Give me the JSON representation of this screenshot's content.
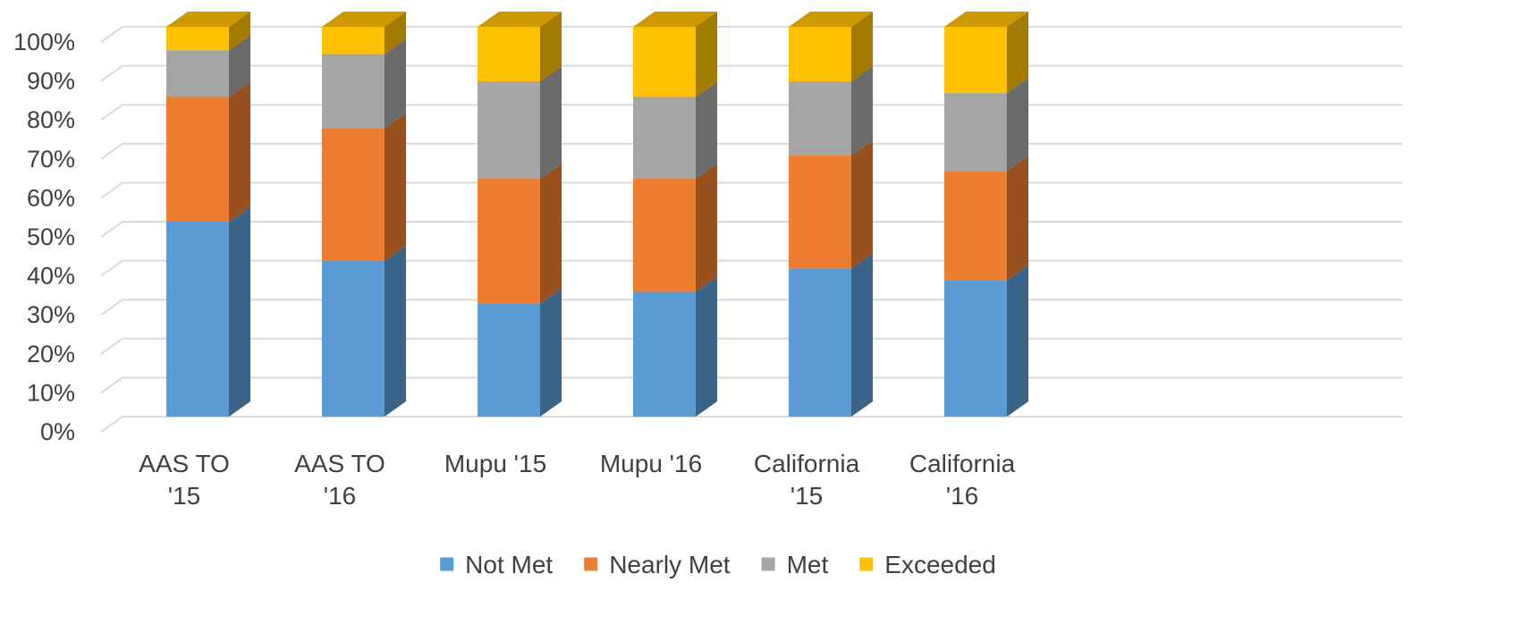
{
  "chart_data": {
    "type": "bar",
    "stacked": true,
    "percent_stacked": true,
    "three_d": true,
    "categories": [
      [
        "AAS TO",
        "'15"
      ],
      [
        "AAS TO",
        "'16"
      ],
      [
        "Mupu '15"
      ],
      [
        "Mupu '16"
      ],
      [
        "California",
        "'15"
      ],
      [
        "California",
        "'16"
      ]
    ],
    "series": [
      {
        "name": "Not Met",
        "color": "#5B9BD5",
        "values": [
          50,
          40,
          29,
          32,
          38,
          35
        ]
      },
      {
        "name": "Nearly Met",
        "color": "#ED7D31",
        "values": [
          32,
          34,
          32,
          29,
          29,
          28
        ]
      },
      {
        "name": "Met",
        "color": "#A5A5A5",
        "values": [
          12,
          19,
          25,
          21,
          19,
          20
        ]
      },
      {
        "name": "Exceeded",
        "color": "#FFC000",
        "values": [
          6,
          7,
          14,
          18,
          14,
          17
        ]
      }
    ],
    "y_ticks": [
      "0%",
      "10%",
      "20%",
      "30%",
      "40%",
      "50%",
      "60%",
      "70%",
      "80%",
      "90%",
      "100%"
    ],
    "ylim": [
      0,
      100
    ],
    "grid": true,
    "legend_position": "bottom",
    "title": "",
    "xlabel": "",
    "ylabel": ""
  }
}
